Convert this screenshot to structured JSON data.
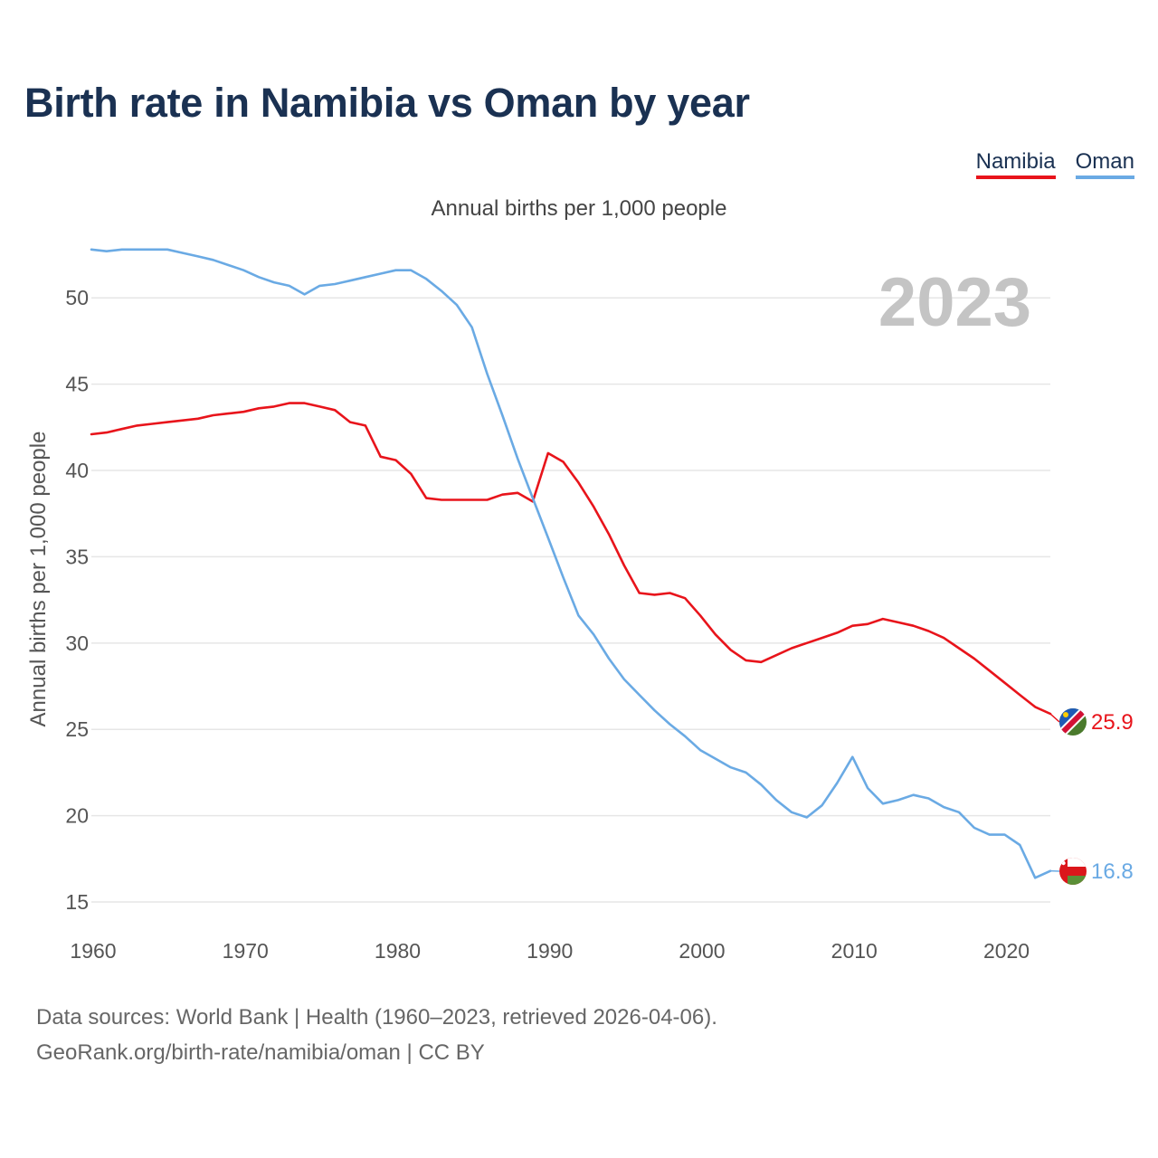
{
  "title": "Birth rate in Namibia vs Oman by year",
  "subtitle": "Annual births per 1,000 people",
  "legend": [
    {
      "label": "Namibia",
      "color": "#e8141b"
    },
    {
      "label": "Oman",
      "color": "#6aaae4"
    }
  ],
  "footer": {
    "line1": "Data sources: World Bank | Health (1960–2023, retrieved 2026-04-06).",
    "line2": "GeoRank.org/birth-rate/namibia/oman | CC BY"
  },
  "chart_data": {
    "type": "line",
    "title": "Birth rate in Namibia vs Oman by year",
    "xlabel": "",
    "ylabel": "Annual births per 1,000 people",
    "year_label": "2023",
    "xlim": [
      1960,
      2023
    ],
    "ylim": [
      15,
      53
    ],
    "x_ticks": [
      1960,
      1970,
      1980,
      1990,
      2000,
      2010,
      2020
    ],
    "y_ticks": [
      15,
      20,
      25,
      30,
      35,
      40,
      45,
      50
    ],
    "grid": true,
    "x": [
      1960,
      1961,
      1962,
      1963,
      1964,
      1965,
      1966,
      1967,
      1968,
      1969,
      1970,
      1971,
      1972,
      1973,
      1974,
      1975,
      1976,
      1977,
      1978,
      1979,
      1980,
      1981,
      1982,
      1983,
      1984,
      1985,
      1986,
      1987,
      1988,
      1989,
      1990,
      1991,
      1992,
      1993,
      1994,
      1995,
      1996,
      1997,
      1998,
      1999,
      2000,
      2001,
      2002,
      2003,
      2004,
      2005,
      2006,
      2007,
      2008,
      2009,
      2010,
      2011,
      2012,
      2013,
      2014,
      2015,
      2016,
      2017,
      2018,
      2019,
      2020,
      2021,
      2022,
      2023
    ],
    "series": [
      {
        "name": "Namibia",
        "color": "#e8141b",
        "end_label": "25.9",
        "values": [
          42.1,
          42.2,
          42.4,
          42.6,
          42.7,
          42.8,
          42.9,
          43.0,
          43.2,
          43.3,
          43.4,
          43.6,
          43.7,
          43.9,
          43.9,
          43.7,
          43.5,
          42.8,
          42.6,
          40.8,
          40.6,
          39.8,
          38.4,
          38.3,
          38.3,
          38.3,
          38.3,
          38.6,
          38.7,
          38.2,
          41.0,
          40.5,
          39.3,
          37.9,
          36.3,
          34.5,
          32.9,
          32.8,
          32.9,
          32.6,
          31.6,
          30.5,
          29.6,
          29.0,
          28.9,
          29.3,
          29.7,
          30.0,
          30.3,
          30.6,
          31.0,
          31.1,
          31.4,
          31.2,
          31.0,
          30.7,
          30.3,
          29.7,
          29.1,
          28.4,
          27.7,
          27.0,
          26.3,
          25.9
        ]
      },
      {
        "name": "Oman",
        "color": "#6aaae4",
        "end_label": "16.8",
        "values": [
          52.8,
          52.7,
          52.8,
          52.8,
          52.8,
          52.8,
          52.6,
          52.4,
          52.2,
          51.9,
          51.6,
          51.2,
          50.9,
          50.7,
          50.2,
          50.7,
          50.8,
          51.0,
          51.2,
          51.4,
          51.6,
          51.6,
          51.1,
          50.4,
          49.6,
          48.3,
          45.6,
          43.2,
          40.7,
          38.4,
          36.1,
          33.8,
          31.6,
          30.5,
          29.1,
          27.9,
          27.0,
          26.1,
          25.3,
          24.6,
          23.8,
          23.3,
          22.8,
          22.5,
          21.8,
          20.9,
          20.2,
          19.9,
          20.6,
          21.9,
          23.4,
          21.6,
          20.7,
          20.9,
          21.2,
          21.0,
          20.5,
          20.2,
          19.3,
          18.9,
          18.9,
          18.3,
          16.4,
          16.8
        ]
      }
    ]
  }
}
